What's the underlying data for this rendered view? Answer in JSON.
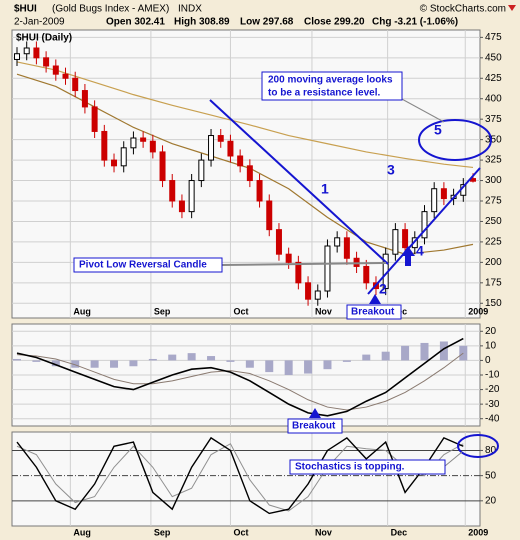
{
  "header": {
    "symbol": "$HUI",
    "name": "(Gold Bugs Index - AMEX)",
    "exchange": "INDX",
    "source": "© StockCharts.com",
    "date": "2-Jan-2009",
    "open": "Open 302.41",
    "high": "High 308.89",
    "low": "Low 297.68",
    "close": "Close 299.20",
    "change": "Chg -3.21 (-1.06%)"
  },
  "chart_data": [
    {
      "type": "candlestick",
      "title": "$HUI (Daily)",
      "up_color": "#000000",
      "down_color": "#cc0000",
      "grid": true,
      "open": [
        448,
        455,
        462,
        450,
        440,
        430,
        425,
        410,
        390,
        360,
        325,
        318,
        340,
        352,
        348,
        335,
        300,
        275,
        262,
        300,
        325,
        355,
        348,
        330,
        318,
        300,
        275,
        240,
        210,
        200,
        175,
        155,
        165,
        220,
        230,
        205,
        195,
        175,
        168,
        210,
        240,
        218,
        230,
        262,
        290,
        278,
        282,
        302.41
      ],
      "high": [
        463,
        470,
        470,
        458,
        448,
        438,
        433,
        418,
        398,
        368,
        333,
        348,
        360,
        360,
        356,
        343,
        308,
        283,
        308,
        333,
        363,
        363,
        356,
        338,
        326,
        308,
        283,
        248,
        218,
        208,
        183,
        173,
        228,
        238,
        238,
        213,
        203,
        183,
        218,
        248,
        248,
        238,
        270,
        298,
        298,
        290,
        303,
        308.89
      ],
      "low": [
        440,
        447,
        442,
        432,
        422,
        417,
        402,
        382,
        352,
        317,
        310,
        310,
        332,
        340,
        327,
        292,
        267,
        254,
        254,
        292,
        317,
        340,
        322,
        310,
        292,
        267,
        232,
        202,
        192,
        167,
        147,
        147,
        157,
        212,
        197,
        187,
        167,
        160,
        160,
        202,
        210,
        210,
        222,
        254,
        270,
        270,
        274,
        297.68
      ],
      "close": [
        455,
        462,
        450,
        440,
        430,
        425,
        410,
        390,
        360,
        325,
        318,
        340,
        352,
        348,
        335,
        300,
        275,
        262,
        300,
        325,
        355,
        348,
        330,
        318,
        300,
        275,
        240,
        210,
        200,
        175,
        155,
        165,
        220,
        230,
        205,
        195,
        175,
        168,
        210,
        240,
        218,
        230,
        262,
        290,
        278,
        282,
        295,
        299.2
      ],
      "moving_averages": [
        {
          "color": "#c8a050",
          "x": [
            0,
            4,
            8,
            12,
            16,
            20,
            24,
            28,
            32,
            36,
            40,
            44,
            47
          ],
          "values": [
            445,
            435,
            420,
            405,
            392,
            380,
            368,
            355,
            345,
            335,
            327,
            320,
            316
          ]
        },
        {
          "color": "#a07830",
          "x": [
            0,
            4,
            8,
            12,
            16,
            20,
            24,
            28,
            32,
            36,
            40,
            44,
            47
          ],
          "values": [
            430,
            415,
            390,
            365,
            345,
            330,
            315,
            290,
            255,
            225,
            210,
            215,
            222
          ]
        }
      ],
      "ylim": [
        132,
        484
      ],
      "yticks": [
        150,
        175,
        200,
        225,
        250,
        275,
        300,
        325,
        350,
        375,
        400,
        425,
        450,
        475
      ],
      "xlim": [
        0,
        47
      ],
      "xticks": [
        {
          "value": 5.5,
          "label": "Aug"
        },
        {
          "value": 13.8,
          "label": "Sep"
        },
        {
          "value": 22,
          "label": "Oct"
        },
        {
          "value": 30.4,
          "label": "Nov"
        },
        {
          "value": 38.2,
          "label": "Dec"
        },
        {
          "value": 46.2,
          "label": "2009"
        }
      ],
      "note_lines": [
        "200 moving average looks",
        "to be a resistance level."
      ],
      "annotations": [
        "1",
        "2",
        "3",
        "4",
        "5",
        "Pivot Low Reversal Candle",
        "Breakout"
      ]
    },
    {
      "type": "macd",
      "x": [
        0,
        2,
        4,
        6,
        8,
        10,
        12,
        14,
        16,
        18,
        20,
        22,
        24,
        26,
        28,
        30,
        32,
        34,
        36,
        38,
        40,
        42,
        44,
        46
      ],
      "macd": [
        5,
        2,
        -3,
        -8,
        -13,
        -18,
        -20,
        -15,
        -10,
        -6,
        -5,
        -8,
        -14,
        -22,
        -30,
        -36,
        -38,
        -35,
        -28,
        -22,
        -12,
        -2,
        8,
        15
      ],
      "signal": [
        4,
        3,
        1,
        -3,
        -8,
        -13,
        -16,
        -16,
        -14,
        -11,
        -8,
        -7,
        -9,
        -14,
        -20,
        -27,
        -32,
        -34,
        -32,
        -28,
        -22,
        -14,
        -5,
        5
      ],
      "histogram": [
        1,
        -1,
        -4,
        -5,
        -5,
        -5,
        -4,
        1,
        4,
        5,
        3,
        -1,
        -5,
        -8,
        -10,
        -9,
        -6,
        -1,
        4,
        6,
        10,
        12,
        13,
        10
      ],
      "macd_color": "#000000",
      "signal_color": "#8a7a70",
      "histogram_color": "#a8a8c8",
      "ylim": [
        -45,
        25
      ],
      "yticks": [
        20,
        10,
        0,
        -10,
        -20,
        -30,
        -40
      ],
      "annotations": [
        "Breakout"
      ]
    },
    {
      "type": "stochastic",
      "x": [
        0,
        2,
        4,
        6,
        8,
        10,
        12,
        14,
        16,
        18,
        20,
        22,
        24,
        26,
        28,
        30,
        32,
        34,
        36,
        38,
        40,
        42,
        44,
        46
      ],
      "k": [
        90,
        60,
        20,
        10,
        40,
        85,
        90,
        30,
        10,
        60,
        95,
        80,
        20,
        5,
        10,
        40,
        80,
        95,
        70,
        90,
        30,
        60,
        95,
        85
      ],
      "d": [
        85,
        75,
        40,
        18,
        25,
        60,
        85,
        60,
        25,
        35,
        75,
        88,
        45,
        15,
        8,
        25,
        60,
        85,
        82,
        80,
        60,
        50,
        75,
        88
      ],
      "k_color": "#000000",
      "d_color": "#909090",
      "ylim": [
        -10,
        102
      ],
      "yticks": [
        80,
        50,
        20
      ],
      "xticks": [
        {
          "value": 5.5,
          "label": "Aug"
        },
        {
          "value": 13.8,
          "label": "Sep"
        },
        {
          "value": 22,
          "label": "Oct"
        },
        {
          "value": 30.4,
          "label": "Nov"
        },
        {
          "value": 38.2,
          "label": "Dec"
        },
        {
          "value": 46.2,
          "label": "2009"
        }
      ],
      "annotations": [
        "Stochastics is topping."
      ]
    }
  ]
}
